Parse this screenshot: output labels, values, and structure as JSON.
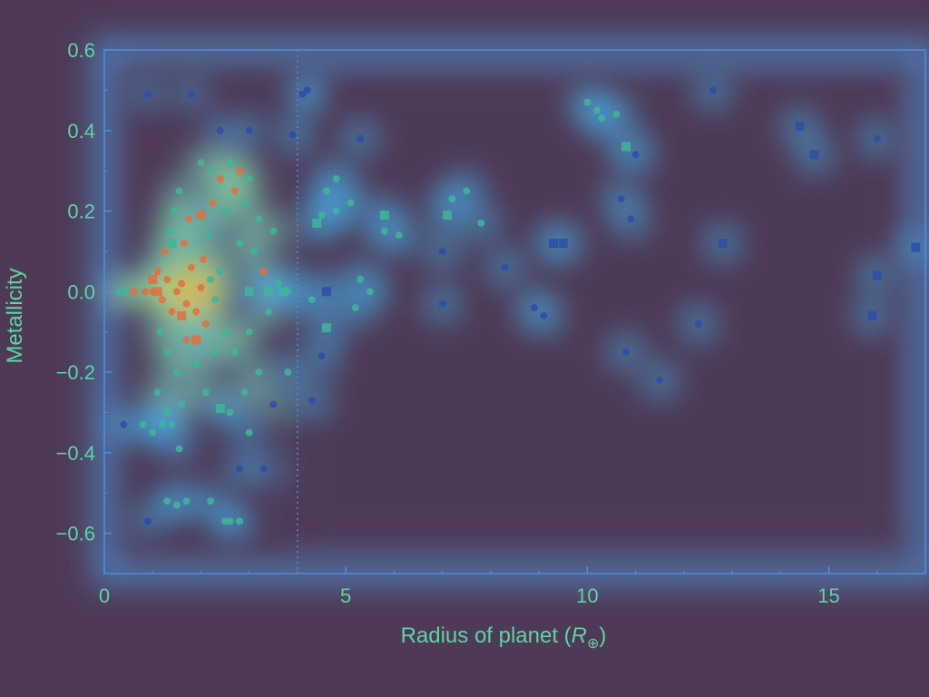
{
  "chart_data": {
    "type": "scatter",
    "title": "",
    "xlabel_main": "Radius of planet (",
    "xlabel_symbol": "R",
    "xlabel_sub": "⊕",
    "xlabel_close": ")",
    "ylabel": "Metallicity",
    "xlim": [
      0,
      17
    ],
    "ylim": [
      -0.7,
      0.6
    ],
    "xticks": [
      0,
      5,
      10,
      15
    ],
    "yticks": [
      0.6,
      0.4,
      0.2,
      0.0,
      -0.2,
      -0.4,
      -0.6
    ],
    "xtick_labels": [
      "0",
      "5",
      "10",
      "15"
    ],
    "ytick_labels": [
      "0.6",
      "0.4",
      "0.2",
      "0.0",
      "−0.2",
      "−0.4",
      "−0.6"
    ],
    "reference_line_x": 4.0,
    "grid": false,
    "legend": "none",
    "colors": {
      "background": "#4e3a57",
      "axes": "#4a8fe0",
      "text": "#5fd3a2",
      "marker_low": "#2a4fa8",
      "marker_mid": "#3fb59a",
      "marker_high": "#e07040"
    },
    "series": [
      {
        "marker": "circle",
        "points": [
          [
            0.3,
            0.0
          ],
          [
            0.45,
            0.0
          ],
          [
            0.6,
            0.0
          ],
          [
            0.85,
            0.0
          ],
          [
            1.0,
            0.0
          ],
          [
            1.1,
            0.05
          ],
          [
            1.2,
            -0.02
          ],
          [
            1.3,
            0.03
          ],
          [
            1.4,
            -0.05
          ],
          [
            1.5,
            0.0
          ],
          [
            1.6,
            0.02
          ],
          [
            1.7,
            -0.03
          ],
          [
            1.8,
            0.06
          ],
          [
            1.9,
            -0.05
          ],
          [
            2.0,
            0.01
          ],
          [
            2.1,
            -0.08
          ],
          [
            2.2,
            0.03
          ],
          [
            2.3,
            -0.02
          ],
          [
            2.4,
            0.05
          ],
          [
            1.25,
            0.1
          ],
          [
            1.35,
            0.15
          ],
          [
            1.45,
            0.2
          ],
          [
            1.55,
            0.25
          ],
          [
            1.65,
            0.12
          ],
          [
            1.75,
            0.18
          ],
          [
            2.05,
            0.08
          ],
          [
            2.15,
            0.14
          ],
          [
            2.25,
            0.22
          ],
          [
            1.15,
            -0.1
          ],
          [
            1.3,
            -0.15
          ],
          [
            1.5,
            -0.2
          ],
          [
            1.7,
            -0.12
          ],
          [
            1.9,
            -0.18
          ],
          [
            2.1,
            -0.25
          ],
          [
            2.3,
            -0.15
          ],
          [
            2.5,
            -0.1
          ],
          [
            1.1,
            -0.25
          ],
          [
            1.3,
            -0.3
          ],
          [
            1.6,
            -0.28
          ],
          [
            1.0,
            -0.35
          ],
          [
            1.2,
            -0.33
          ],
          [
            1.4,
            -0.33
          ],
          [
            0.8,
            -0.33
          ],
          [
            0.4,
            -0.33
          ],
          [
            1.55,
            -0.39
          ],
          [
            2.0,
            0.32
          ],
          [
            2.2,
            0.3
          ],
          [
            2.4,
            0.28
          ],
          [
            2.6,
            0.32
          ],
          [
            2.7,
            0.25
          ],
          [
            2.5,
            0.2
          ],
          [
            2.8,
            0.3
          ],
          [
            3.0,
            0.28
          ],
          [
            2.9,
            0.22
          ],
          [
            3.2,
            0.18
          ],
          [
            3.5,
            0.15
          ],
          [
            3.1,
            0.1
          ],
          [
            2.8,
            0.12
          ],
          [
            3.3,
            0.05
          ],
          [
            3.6,
            0.02
          ],
          [
            3.8,
            0.0
          ],
          [
            3.4,
            -0.05
          ],
          [
            3.0,
            -0.1
          ],
          [
            2.7,
            -0.15
          ],
          [
            2.9,
            -0.25
          ],
          [
            3.2,
            -0.2
          ],
          [
            3.5,
            -0.28
          ],
          [
            3.8,
            -0.2
          ],
          [
            2.6,
            -0.3
          ],
          [
            3.0,
            -0.35
          ],
          [
            2.8,
            -0.44
          ],
          [
            3.3,
            -0.44
          ],
          [
            1.3,
            -0.52
          ],
          [
            1.5,
            -0.53
          ],
          [
            1.7,
            -0.52
          ],
          [
            2.2,
            -0.52
          ],
          [
            2.5,
            -0.57
          ],
          [
            2.6,
            -0.57
          ],
          [
            2.8,
            -0.57
          ],
          [
            0.9,
            -0.57
          ],
          [
            0.9,
            0.49
          ],
          [
            1.8,
            0.49
          ],
          [
            3.0,
            0.4
          ],
          [
            2.4,
            0.4
          ],
          [
            3.9,
            0.39
          ],
          [
            4.1,
            0.49
          ],
          [
            4.2,
            0.5
          ],
          [
            4.3,
            -0.02
          ],
          [
            4.5,
            -0.16
          ],
          [
            4.3,
            -0.27
          ],
          [
            4.6,
            0.25
          ],
          [
            4.5,
            0.19
          ],
          [
            4.8,
            0.28
          ],
          [
            5.3,
            0.38
          ],
          [
            5.1,
            0.22
          ],
          [
            5.8,
            0.15
          ],
          [
            6.1,
            0.14
          ],
          [
            4.8,
            0.2
          ],
          [
            7.0,
            0.1
          ],
          [
            7.2,
            0.23
          ],
          [
            7.5,
            0.25
          ],
          [
            7.8,
            0.17
          ],
          [
            7.0,
            -0.03
          ],
          [
            5.3,
            0.03
          ],
          [
            5.5,
            0.0
          ],
          [
            5.2,
            -0.04
          ],
          [
            8.3,
            0.06
          ],
          [
            8.9,
            -0.04
          ],
          [
            9.1,
            -0.06
          ],
          [
            10.0,
            0.47
          ],
          [
            10.2,
            0.45
          ],
          [
            10.3,
            0.43
          ],
          [
            10.6,
            0.44
          ],
          [
            11.0,
            0.34
          ],
          [
            10.7,
            0.23
          ],
          [
            10.9,
            0.18
          ],
          [
            10.8,
            -0.15
          ],
          [
            11.5,
            -0.22
          ],
          [
            12.3,
            -0.08
          ],
          [
            12.6,
            0.5
          ],
          [
            16.0,
            0.38
          ]
        ]
      },
      {
        "marker": "square",
        "points": [
          [
            1.0,
            0.03
          ],
          [
            1.1,
            0.0
          ],
          [
            1.4,
            0.12
          ],
          [
            1.6,
            -0.06
          ],
          [
            1.9,
            -0.12
          ],
          [
            2.0,
            0.19
          ],
          [
            2.4,
            -0.29
          ],
          [
            3.0,
            0.0
          ],
          [
            3.4,
            0.0
          ],
          [
            3.7,
            0.0
          ],
          [
            4.4,
            0.17
          ],
          [
            4.6,
            0.0
          ],
          [
            4.6,
            -0.09
          ],
          [
            5.8,
            0.19
          ],
          [
            7.1,
            0.19
          ],
          [
            9.3,
            0.12
          ],
          [
            9.5,
            0.12
          ],
          [
            10.8,
            0.36
          ],
          [
            12.8,
            0.12
          ],
          [
            14.4,
            0.41
          ],
          [
            14.7,
            0.34
          ],
          [
            15.9,
            -0.06
          ],
          [
            16.0,
            0.04
          ],
          [
            16.8,
            0.11
          ]
        ]
      }
    ]
  }
}
